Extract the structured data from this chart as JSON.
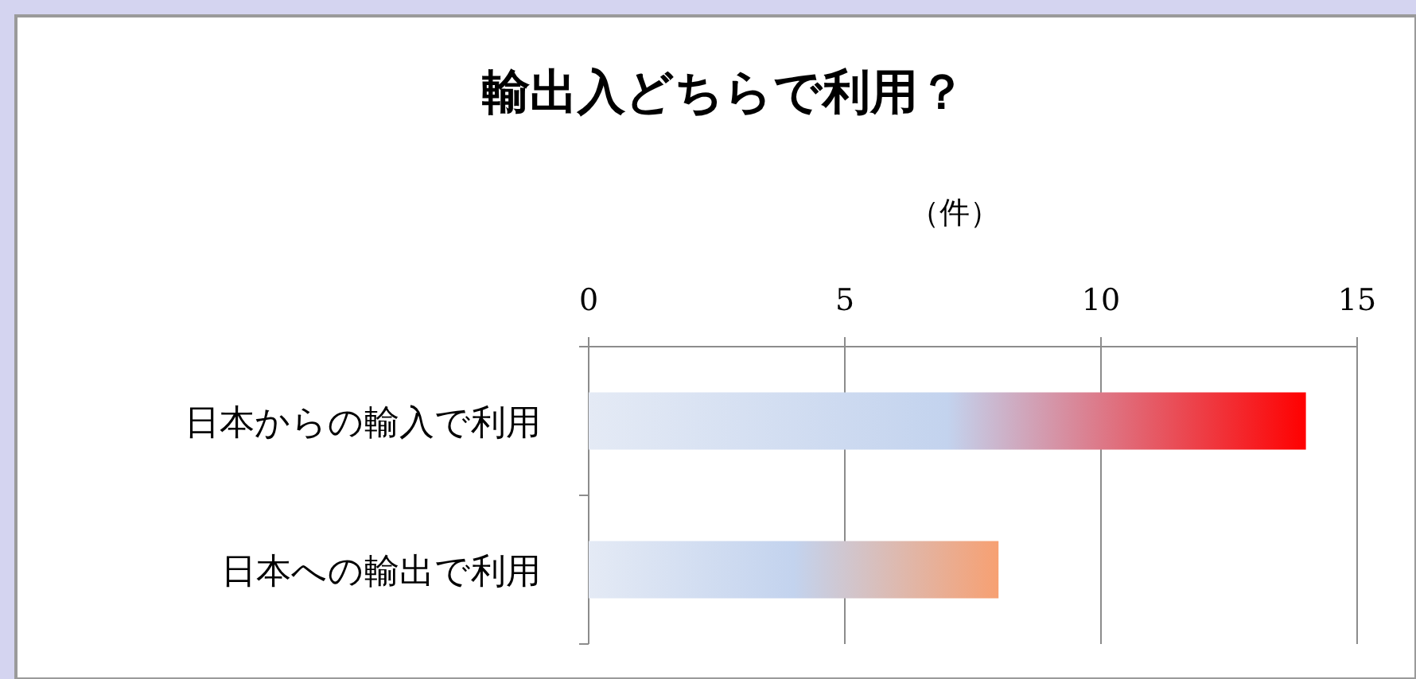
{
  "chart_data": {
    "type": "bar",
    "orientation": "horizontal",
    "title": "輸出入どちらで利用？",
    "xlabel": "（件）",
    "categories": [
      "日本からの輸入で利用",
      "日本への輸出で利用"
    ],
    "values": [
      14,
      8
    ],
    "colors": [
      "#ff0000",
      "#f7a072"
    ],
    "xlim": [
      0,
      15
    ],
    "xticks": [
      0,
      5,
      10,
      15
    ],
    "grid": "x"
  }
}
